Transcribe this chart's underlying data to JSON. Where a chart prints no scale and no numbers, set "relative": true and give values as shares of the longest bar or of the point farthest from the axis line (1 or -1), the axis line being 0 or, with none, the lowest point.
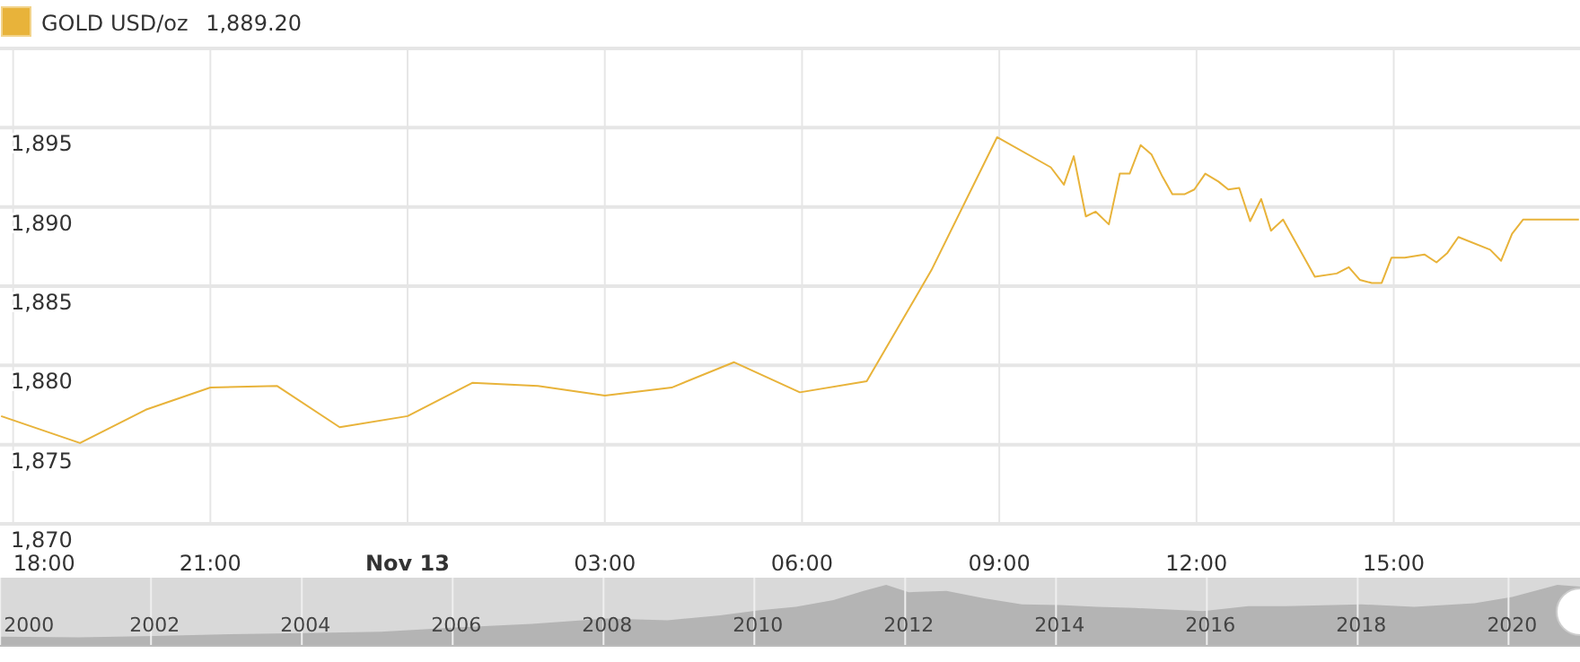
{
  "chart_data": [
    {
      "type": "line",
      "x": [
        "2020-11-12T17:49",
        "2020-11-12T19:01",
        "2020-11-12T20:01",
        "2020-11-12T21:00",
        "2020-11-12T22:01",
        "2020-11-12T22:58",
        "2020-11-13T00:00",
        "2020-11-13T00:59",
        "2020-11-13T01:59",
        "2020-11-13T03:00",
        "2020-11-13T04:01",
        "2020-11-13T04:58",
        "2020-11-13T05:58",
        "2020-11-13T06:59",
        "2020-11-13T07:58",
        "2020-11-13T08:58",
        "2020-11-13T09:47",
        "2020-11-13T09:59",
        "2020-11-13T10:08",
        "2020-11-13T10:19",
        "2020-11-13T10:28",
        "2020-11-13T10:40",
        "2020-11-13T10:50",
        "2020-11-13T10:59",
        "2020-11-13T11:09",
        "2020-11-13T11:19",
        "2020-11-13T11:29",
        "2020-11-13T11:38",
        "2020-11-13T11:49",
        "2020-11-13T11:58",
        "2020-11-13T12:08",
        "2020-11-13T12:20",
        "2020-11-13T12:29",
        "2020-11-13T12:39",
        "2020-11-13T12:49",
        "2020-11-13T12:59",
        "2020-11-13T13:08",
        "2020-11-13T13:19",
        "2020-11-13T13:48",
        "2020-11-13T14:08",
        "2020-11-13T14:19",
        "2020-11-13T14:29",
        "2020-11-13T14:40",
        "2020-11-13T14:49",
        "2020-11-13T14:58",
        "2020-11-13T15:10",
        "2020-11-13T15:28",
        "2020-11-13T15:39",
        "2020-11-13T15:49",
        "2020-11-13T15:59",
        "2020-11-13T16:28",
        "2020-11-13T16:38",
        "2020-11-13T16:48",
        "2020-11-13T16:58",
        "2020-11-13T17:49"
      ],
      "series": [
        {
          "name": "GOLD USD/oz",
          "color": "#e8b33a",
          "values": [
            1876.8,
            1875.1,
            1877.2,
            1878.6,
            1878.7,
            1876.1,
            1876.8,
            1878.9,
            1878.7,
            1878.1,
            1878.6,
            1880.2,
            1878.3,
            1879.0,
            1886.0,
            1894.4,
            1892.5,
            1891.4,
            1893.2,
            1889.4,
            1889.7,
            1888.9,
            1892.1,
            1892.1,
            1893.9,
            1893.3,
            1891.9,
            1890.8,
            1890.8,
            1891.1,
            1892.1,
            1891.6,
            1891.1,
            1891.2,
            1889.1,
            1890.5,
            1888.5,
            1889.2,
            1885.6,
            1885.8,
            1886.2,
            1885.4,
            1885.2,
            1885.2,
            1886.8,
            1886.8,
            1887.0,
            1886.5,
            1887.1,
            1888.1,
            1887.3,
            1886.6,
            1888.3,
            1889.2,
            1889.2
          ]
        }
      ],
      "annotations": [
        "1,889.20"
      ],
      "xlim": [
        "2020-11-12T17:48",
        "2020-11-13T17:50"
      ],
      "xticks": [
        {
          "value": "2020-11-12T18:00",
          "label": "18:00"
        },
        {
          "value": "2020-11-12T21:00",
          "label": "21:00"
        },
        {
          "value": "2020-11-13T00:00",
          "label": "Nov 13"
        },
        {
          "value": "2020-11-13T03:00",
          "label": "03:00"
        },
        {
          "value": "2020-11-13T06:00",
          "label": "06:00"
        },
        {
          "value": "2020-11-13T09:00",
          "label": "09:00"
        },
        {
          "value": "2020-11-13T12:00",
          "label": "12:00"
        },
        {
          "value": "2020-11-13T15:00",
          "label": "15:00"
        }
      ],
      "ylim": [
        1870,
        1900
      ],
      "yticks": [
        {
          "value": 1870,
          "label": "1,870"
        },
        {
          "value": 1875,
          "label": "1,875"
        },
        {
          "value": 1880,
          "label": "1,880"
        },
        {
          "value": 1885,
          "label": "1,885"
        },
        {
          "value": 1890,
          "label": "1,890"
        },
        {
          "value": 1895,
          "label": "1,895"
        },
        {
          "value": 1900,
          "label": null
        }
      ],
      "grid": true,
      "legend": "top left",
      "marker": "none",
      "line_style": "solid"
    },
    {
      "type": "area",
      "relative": true,
      "x": [
        1999.95,
        2001,
        2002,
        2003,
        2004,
        2005,
        2006,
        2007,
        2008,
        2008.8,
        2009.5,
        2010,
        2010.5,
        2011,
        2011.4,
        2011.7,
        2012,
        2012.5,
        2013,
        2013.5,
        2014,
        2014.5,
        2015,
        2015.9,
        2016.5,
        2017,
        2018,
        2018.7,
        2019.5,
        2020,
        2020.6,
        2020.9
      ],
      "values": [
        0.15,
        0.14,
        0.16,
        0.19,
        0.21,
        0.23,
        0.3,
        0.36,
        0.45,
        0.42,
        0.5,
        0.58,
        0.64,
        0.75,
        0.9,
        1.0,
        0.88,
        0.9,
        0.78,
        0.68,
        0.67,
        0.64,
        0.62,
        0.57,
        0.65,
        0.65,
        0.68,
        0.64,
        0.7,
        0.8,
        1.0,
        0.97
      ],
      "color": "#b4b4b4",
      "xlim": [
        1999.95,
        2020.9
      ],
      "xticks": [
        2000,
        2002,
        2004,
        2006,
        2008,
        2010,
        2012,
        2014,
        2016,
        2018,
        2020
      ],
      "grid": "x",
      "tick_labels": "x"
    }
  ]
}
